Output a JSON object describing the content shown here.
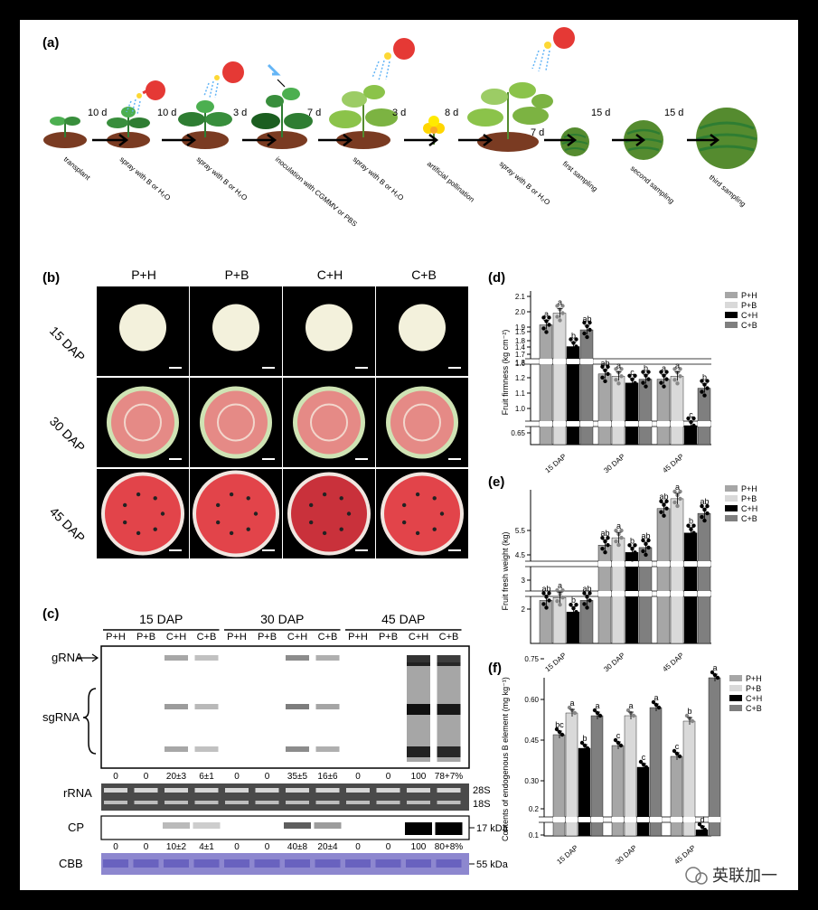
{
  "figure": {
    "panel_a": {
      "label": "(a)",
      "intervals": [
        "10 d",
        "10 d",
        "3 d",
        "7 d",
        "3 d",
        "8 d",
        "7 d",
        "15 d",
        "15 d"
      ],
      "steps": [
        "transplant",
        "spray with B or H₂O",
        "spray with B or H₂O",
        "inoculation with CGMMV or PBS",
        "spray with B or H₂O",
        "artificial pollination",
        "spray with B or H₂O",
        "first sampling",
        "second sampling",
        "third sampling"
      ]
    },
    "panel_b": {
      "label": "(b)",
      "columns": [
        "P+H",
        "P+B",
        "C+H",
        "C+B"
      ],
      "rows": [
        "15 DAP",
        "30 DAP",
        "45 DAP"
      ]
    },
    "panel_c": {
      "label": "(c)",
      "groups": [
        "15 DAP",
        "30 DAP",
        "45 DAP"
      ],
      "lanes": [
        "P+H",
        "P+B",
        "C+H",
        "C+B",
        "P+H",
        "P+B",
        "C+H",
        "C+B",
        "P+H",
        "P+B",
        "C+H",
        "C+B"
      ],
      "blot_labels": {
        "grna": "gRNA",
        "sgrna": "sgRNA",
        "rrna": "rRNA",
        "cp": "CP",
        "cbb": "CBB"
      },
      "rna_values": [
        "0",
        "0",
        "20±3",
        "6±1",
        "0",
        "0",
        "35±5",
        "16±6",
        "0",
        "0",
        "100",
        "78+7%"
      ],
      "cp_values": [
        "0",
        "0",
        "10±2",
        "4±1",
        "0",
        "0",
        "40±8",
        "20±4",
        "0",
        "0",
        "100",
        "80+8%"
      ],
      "markers": {
        "s28": "28S",
        "s18": "18S",
        "cp_kda": "17 kDa",
        "cbb_kda": "55 kDa"
      }
    },
    "watermark": "英联加一"
  },
  "chart_data": [
    {
      "panel": "(d)",
      "type": "bar",
      "categories": [
        "15 DAP",
        "30 DAP",
        "45 DAP"
      ],
      "ylabel": "Fruit firmness (kg cm⁻²)",
      "yticks": [
        "0.65",
        "1.0",
        "1.1",
        "1.2",
        "1.3",
        "1.4",
        "1.5",
        "1.6",
        "1.7",
        "1.8",
        "1.9",
        "2.0",
        "2.1"
      ],
      "colors": [
        "#a6a6a6",
        "#d9d9d9",
        "#000000",
        "#7f7f7f"
      ],
      "legend": [
        "P+H",
        "P+B",
        "C+H",
        "C+B"
      ],
      "legend_position": "top-right",
      "series": [
        {
          "name": "P+H",
          "values": [
            1.93,
            1.46,
            1.39
          ],
          "letters": [
            "a",
            "ab",
            "a"
          ]
        },
        {
          "name": "P+B",
          "values": [
            2.0,
            1.43,
            1.43
          ],
          "letters": [
            "a",
            "a",
            "a"
          ]
        },
        {
          "name": "C+H",
          "values": [
            1.8,
            1.34,
            0.75
          ],
          "letters": [
            "b",
            "c",
            "c"
          ]
        },
        {
          "name": "C+B",
          "values": [
            1.9,
            1.39,
            1.27
          ],
          "letters": [
            "ab",
            "b",
            "b"
          ]
        }
      ]
    },
    {
      "panel": "(e)",
      "type": "bar",
      "categories": [
        "15 DAP",
        "30 DAP",
        "45 DAP"
      ],
      "ylabel": "Fruit fresh weight (kg)",
      "yticks": [
        "2",
        "3",
        "4.5",
        "5.5"
      ],
      "colors": [
        "#a6a6a6",
        "#d9d9d9",
        "#000000",
        "#7f7f7f"
      ],
      "legend": [
        "P+H",
        "P+B",
        "C+H",
        "C+B"
      ],
      "legend_position": "top-right",
      "series": [
        {
          "name": "P+H",
          "values": [
            2.3,
            4.9,
            6.4
          ],
          "letters": [
            "ab",
            "ab",
            "ab"
          ]
        },
        {
          "name": "P+B",
          "values": [
            2.4,
            5.2,
            6.8
          ],
          "letters": [
            "a",
            "a",
            "a"
          ]
        },
        {
          "name": "C+H",
          "values": [
            1.9,
            4.6,
            5.4
          ],
          "letters": [
            "b",
            "b",
            "b"
          ]
        },
        {
          "name": "C+B",
          "values": [
            2.3,
            4.8,
            6.2
          ],
          "letters": [
            "ab",
            "ab",
            "ab"
          ]
        }
      ]
    },
    {
      "panel": "(f)",
      "type": "bar",
      "categories": [
        "15 DAP",
        "30 DAP",
        "45 DAP"
      ],
      "ylabel": "Contents of endogenous B element (mg kg⁻¹)",
      "yticks": [
        "0.1",
        "0.2",
        "0.30",
        "0.45",
        "0.60",
        "0.75"
      ],
      "colors": [
        "#a6a6a6",
        "#d9d9d9",
        "#000000",
        "#7f7f7f"
      ],
      "legend": [
        "P+H",
        "P+B",
        "C+H",
        "C+B"
      ],
      "legend_position": "top-right",
      "series": [
        {
          "name": "P+H",
          "values": [
            0.47,
            0.43,
            0.39
          ],
          "letters": [
            "bc",
            "c",
            "c"
          ]
        },
        {
          "name": "P+B",
          "values": [
            0.55,
            0.54,
            0.52
          ],
          "letters": [
            "a",
            "a",
            "b"
          ]
        },
        {
          "name": "C+H",
          "values": [
            0.42,
            0.35,
            0.12
          ],
          "letters": [
            "b",
            "c",
            "d"
          ]
        },
        {
          "name": "C+B",
          "values": [
            0.54,
            0.57,
            0.68
          ],
          "letters": [
            "a",
            "a",
            "a"
          ]
        }
      ]
    }
  ]
}
